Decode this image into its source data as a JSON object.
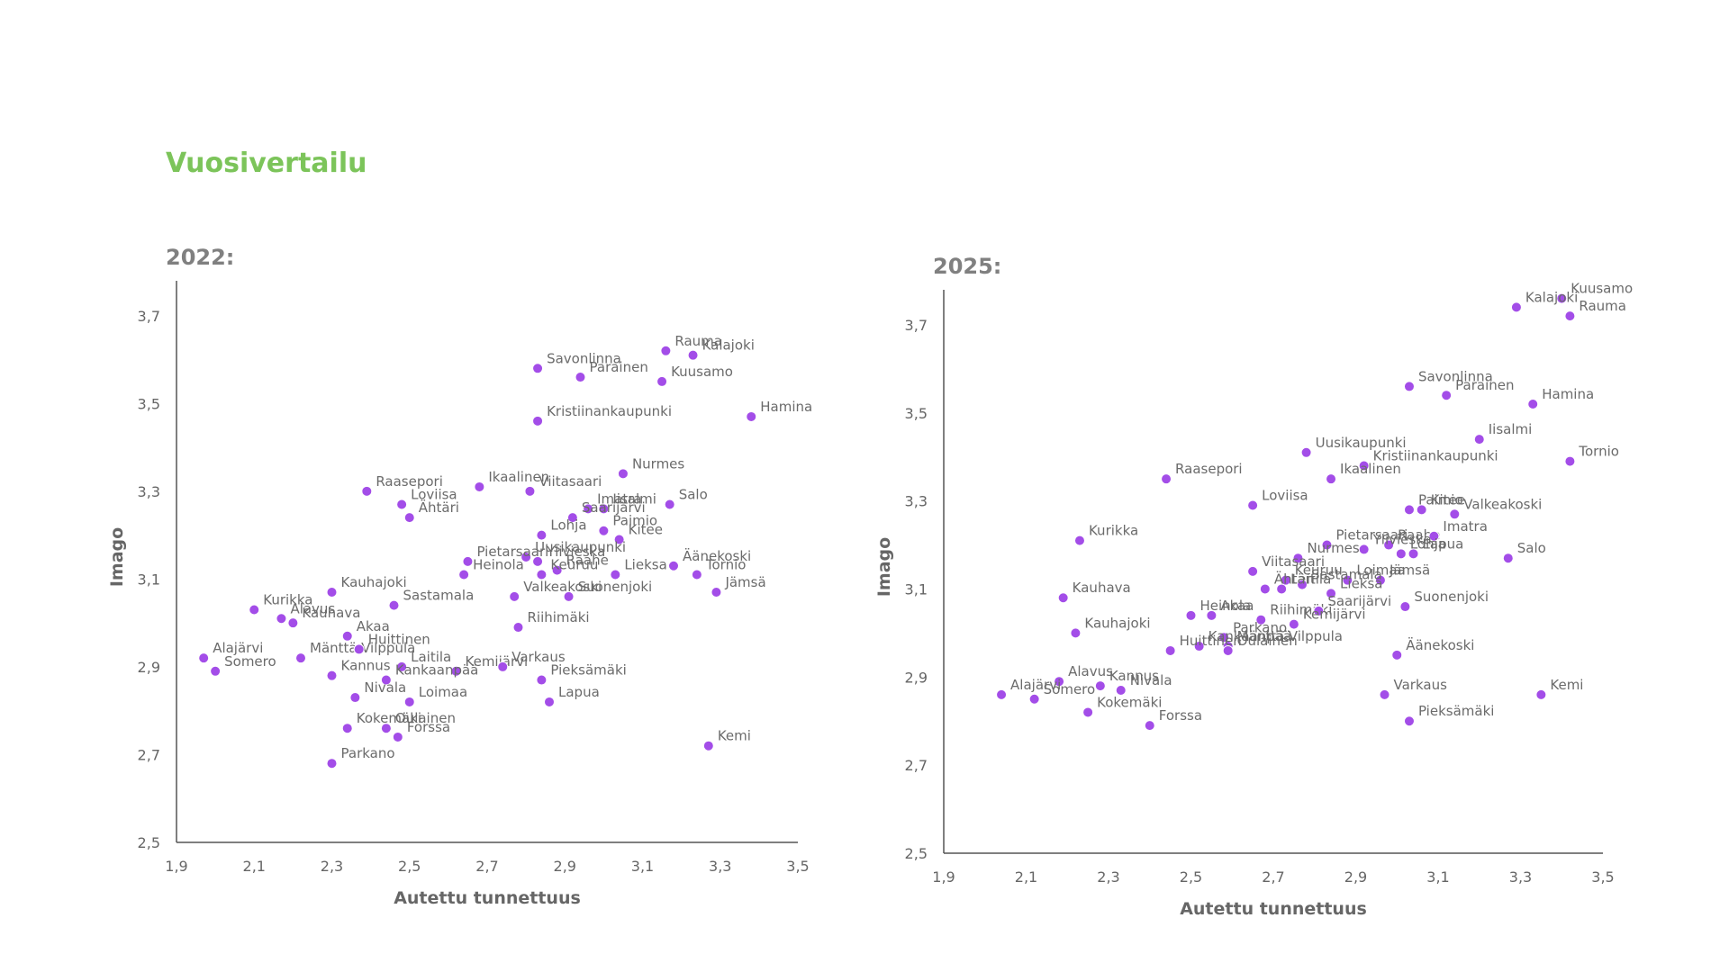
{
  "page": {
    "title": "Vuosivertailu"
  },
  "chart_data": [
    {
      "type": "scatter",
      "title": "2022:",
      "xlabel": "Autettu tunnettuus",
      "ylabel": "Imago",
      "xlim": [
        1.9,
        3.5
      ],
      "ylim": [
        2.5,
        3.8
      ],
      "xticks": [
        "1,9",
        "2,1",
        "2,3",
        "2,5",
        "2,7",
        "2,9",
        "3,1",
        "3,3",
        "3,5"
      ],
      "yticks": [
        "2,5",
        "2,7",
        "2,9",
        "3,1",
        "3,3",
        "3,5",
        "3,7"
      ],
      "grid": false,
      "point_color": "#a34de8",
      "points": [
        {
          "label": "Rauma",
          "x": 3.16,
          "y": 3.62
        },
        {
          "label": "Kalajoki",
          "x": 3.23,
          "y": 3.61
        },
        {
          "label": "Savonlinna",
          "x": 2.83,
          "y": 3.58
        },
        {
          "label": "Parainen",
          "x": 2.94,
          "y": 3.56
        },
        {
          "label": "Kuusamo",
          "x": 3.15,
          "y": 3.55
        },
        {
          "label": "Hamina",
          "x": 3.38,
          "y": 3.47
        },
        {
          "label": "Kristiinankaupunki",
          "x": 2.83,
          "y": 3.46
        },
        {
          "label": "Nurmes",
          "x": 3.05,
          "y": 3.34
        },
        {
          "label": "Ikaalinen",
          "x": 2.68,
          "y": 3.31
        },
        {
          "label": "Raasepori",
          "x": 2.39,
          "y": 3.3
        },
        {
          "label": "Viitasaari",
          "x": 2.81,
          "y": 3.3
        },
        {
          "label": "Loviisa",
          "x": 2.48,
          "y": 3.27
        },
        {
          "label": "Salo",
          "x": 3.17,
          "y": 3.27
        },
        {
          "label": "Imatra",
          "x": 2.96,
          "y": 3.26
        },
        {
          "label": "Iisalmi",
          "x": 3.0,
          "y": 3.26
        },
        {
          "label": "Ähtäri",
          "x": 2.5,
          "y": 3.24
        },
        {
          "label": "Saarijärvi",
          "x": 2.92,
          "y": 3.24
        },
        {
          "label": "Paimio",
          "x": 3.0,
          "y": 3.21
        },
        {
          "label": "Lohja",
          "x": 2.84,
          "y": 3.2
        },
        {
          "label": "Kitee",
          "x": 3.04,
          "y": 3.19
        },
        {
          "label": "Uusikaupunki",
          "x": 2.8,
          "y": 3.15
        },
        {
          "label": "Ylivieska",
          "x": 2.83,
          "y": 3.14
        },
        {
          "label": "Pietarsaari",
          "x": 2.65,
          "y": 3.14
        },
        {
          "label": "Äänekoski",
          "x": 3.18,
          "y": 3.13
        },
        {
          "label": "Raahe",
          "x": 2.88,
          "y": 3.12
        },
        {
          "label": "Heinola",
          "x": 2.64,
          "y": 3.11
        },
        {
          "label": "Keuruu",
          "x": 2.84,
          "y": 3.11
        },
        {
          "label": "Lieksa",
          "x": 3.03,
          "y": 3.11
        },
        {
          "label": "Tornio",
          "x": 3.24,
          "y": 3.11
        },
        {
          "label": "Kauhajoki",
          "x": 2.3,
          "y": 3.07
        },
        {
          "label": "Jämsä",
          "x": 3.29,
          "y": 3.07
        },
        {
          "label": "Valkeakoski",
          "x": 2.77,
          "y": 3.06
        },
        {
          "label": "Sastamala",
          "x": 2.46,
          "y": 3.04
        },
        {
          "label": "Suonenjoki",
          "x": 2.91,
          "y": 3.06
        },
        {
          "label": "Kurikka",
          "x": 2.1,
          "y": 3.03
        },
        {
          "label": "Alavus",
          "x": 2.17,
          "y": 3.01
        },
        {
          "label": "Kauhava",
          "x": 2.2,
          "y": 3.0
        },
        {
          "label": "Riihimäki",
          "x": 2.78,
          "y": 2.99
        },
        {
          "label": "Akaa",
          "x": 2.34,
          "y": 2.97
        },
        {
          "label": "Alajärvi",
          "x": 1.97,
          "y": 2.92
        },
        {
          "label": "Mänttä-Vilppula",
          "x": 2.22,
          "y": 2.92
        },
        {
          "label": "Huittinen",
          "x": 2.37,
          "y": 2.94
        },
        {
          "label": "Somero",
          "x": 2.0,
          "y": 2.89
        },
        {
          "label": "Kannus",
          "x": 2.3,
          "y": 2.88
        },
        {
          "label": "Laitila",
          "x": 2.48,
          "y": 2.9
        },
        {
          "label": "Kemijärvi",
          "x": 2.62,
          "y": 2.89
        },
        {
          "label": "Varkaus",
          "x": 2.74,
          "y": 2.9
        },
        {
          "label": "Kankaanpää",
          "x": 2.44,
          "y": 2.87
        },
        {
          "label": "Pieksämäki",
          "x": 2.84,
          "y": 2.87
        },
        {
          "label": "Nivala",
          "x": 2.36,
          "y": 2.83
        },
        {
          "label": "Loimaa",
          "x": 2.5,
          "y": 2.82
        },
        {
          "label": "Lapua",
          "x": 2.86,
          "y": 2.82
        },
        {
          "label": "Oulainen",
          "x": 2.44,
          "y": 2.76
        },
        {
          "label": "Kokemäki",
          "x": 2.34,
          "y": 2.76
        },
        {
          "label": "Forssa",
          "x": 2.47,
          "y": 2.74
        },
        {
          "label": "Kemi",
          "x": 3.27,
          "y": 2.72
        },
        {
          "label": "Parkano",
          "x": 2.3,
          "y": 2.68
        }
      ]
    },
    {
      "type": "scatter",
      "title": "2025:",
      "xlabel": "Autettu tunnettuus",
      "ylabel": "Imago",
      "xlim": [
        1.9,
        3.5
      ],
      "ylim": [
        2.5,
        3.8
      ],
      "xticks": [
        "1,9",
        "2,1",
        "2,3",
        "2,5",
        "2,7",
        "2,9",
        "3,1",
        "3,3",
        "3,5"
      ],
      "yticks": [
        "2,5",
        "2,7",
        "2,9",
        "3,1",
        "3,3",
        "3,5",
        "3,7"
      ],
      "grid": false,
      "point_color": "#a34de8",
      "points": [
        {
          "label": "Kuusamo",
          "x": 3.4,
          "y": 3.76
        },
        {
          "label": "Kalajoki",
          "x": 3.29,
          "y": 3.74
        },
        {
          "label": "Rauma",
          "x": 3.42,
          "y": 3.72
        },
        {
          "label": "Savonlinna",
          "x": 3.03,
          "y": 3.56
        },
        {
          "label": "Parainen",
          "x": 3.12,
          "y": 3.54
        },
        {
          "label": "Hamina",
          "x": 3.33,
          "y": 3.52
        },
        {
          "label": "Iisalmi",
          "x": 3.2,
          "y": 3.44
        },
        {
          "label": "Uusikaupunki",
          "x": 2.78,
          "y": 3.41
        },
        {
          "label": "Tornio",
          "x": 3.42,
          "y": 3.39
        },
        {
          "label": "Kristiinankaupunki",
          "x": 2.92,
          "y": 3.38
        },
        {
          "label": "Raasepori",
          "x": 2.44,
          "y": 3.35
        },
        {
          "label": "Ikaalinen",
          "x": 2.84,
          "y": 3.35
        },
        {
          "label": "Loviisa",
          "x": 2.65,
          "y": 3.29
        },
        {
          "label": "Paimio",
          "x": 3.03,
          "y": 3.28
        },
        {
          "label": "Kitee",
          "x": 3.06,
          "y": 3.28
        },
        {
          "label": "Valkeakoski",
          "x": 3.14,
          "y": 3.27
        },
        {
          "label": "Pietarsaari",
          "x": 2.83,
          "y": 3.2
        },
        {
          "label": "Raahe",
          "x": 2.98,
          "y": 3.2
        },
        {
          "label": "Imatra",
          "x": 3.09,
          "y": 3.22
        },
        {
          "label": "Kurikka",
          "x": 2.23,
          "y": 3.21
        },
        {
          "label": "Ylivieska",
          "x": 2.92,
          "y": 3.19
        },
        {
          "label": "Lohja",
          "x": 3.01,
          "y": 3.18
        },
        {
          "label": "Nurmes",
          "x": 2.76,
          "y": 3.17
        },
        {
          "label": "Lapua",
          "x": 3.04,
          "y": 3.18
        },
        {
          "label": "Salo",
          "x": 3.27,
          "y": 3.17
        },
        {
          "label": "Viitasaari",
          "x": 2.65,
          "y": 3.14
        },
        {
          "label": "Keuruu",
          "x": 2.73,
          "y": 3.12
        },
        {
          "label": "Laitila",
          "x": 2.72,
          "y": 3.1
        },
        {
          "label": "Loimaa",
          "x": 2.88,
          "y": 3.12
        },
        {
          "label": "Jämsä",
          "x": 2.96,
          "y": 3.12
        },
        {
          "label": "Sastamala",
          "x": 2.77,
          "y": 3.11
        },
        {
          "label": "Ähtäri",
          "x": 2.68,
          "y": 3.1
        },
        {
          "label": "Kauhava",
          "x": 2.19,
          "y": 3.08
        },
        {
          "label": "Suonenjoki",
          "x": 3.02,
          "y": 3.06
        },
        {
          "label": "Heinola",
          "x": 2.5,
          "y": 3.04
        },
        {
          "label": "Akaa",
          "x": 2.55,
          "y": 3.04
        },
        {
          "label": "Lieksa",
          "x": 2.84,
          "y": 3.09
        },
        {
          "label": "Riihimäki",
          "x": 2.67,
          "y": 3.03
        },
        {
          "label": "Saarijärvi",
          "x": 2.81,
          "y": 3.05
        },
        {
          "label": "Kemijärvi",
          "x": 2.75,
          "y": 3.02
        },
        {
          "label": "Kauhajoki",
          "x": 2.22,
          "y": 3.0
        },
        {
          "label": "Parkano",
          "x": 2.58,
          "y": 2.99
        },
        {
          "label": "Mänttä-Vilppula",
          "x": 2.59,
          "y": 2.97
        },
        {
          "label": "Kankaanpää",
          "x": 2.52,
          "y": 2.97
        },
        {
          "label": "Huittinen",
          "x": 2.45,
          "y": 2.96
        },
        {
          "label": "Oulainen",
          "x": 2.59,
          "y": 2.96
        },
        {
          "label": "Äänekoski",
          "x": 3.0,
          "y": 2.95
        },
        {
          "label": "Alavus",
          "x": 2.18,
          "y": 2.89
        },
        {
          "label": "Kannus",
          "x": 2.28,
          "y": 2.88
        },
        {
          "label": "Alajärvi",
          "x": 2.04,
          "y": 2.86
        },
        {
          "label": "Nivala",
          "x": 2.33,
          "y": 2.87
        },
        {
          "label": "Varkaus",
          "x": 2.97,
          "y": 2.86
        },
        {
          "label": "Kemi",
          "x": 3.35,
          "y": 2.86
        },
        {
          "label": "Somero",
          "x": 2.12,
          "y": 2.85
        },
        {
          "label": "Kokemäki",
          "x": 2.25,
          "y": 2.82
        },
        {
          "label": "Forssa",
          "x": 2.4,
          "y": 2.79
        },
        {
          "label": "Pieksämäki",
          "x": 3.03,
          "y": 2.8
        }
      ]
    }
  ]
}
